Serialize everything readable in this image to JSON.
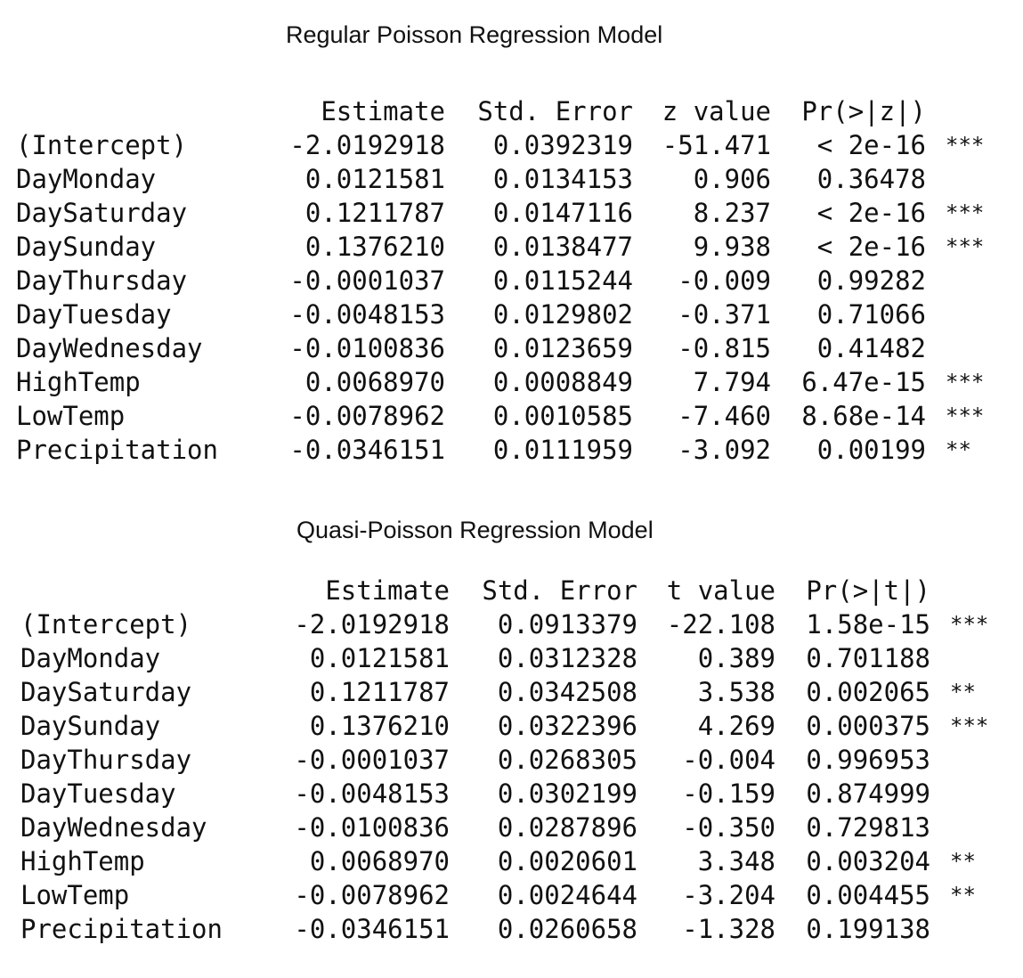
{
  "regular": {
    "title": "Regular Poisson Regression Model",
    "headers": [
      "",
      "Estimate",
      "Std. Error",
      "z value",
      "Pr(>|z|)",
      ""
    ],
    "rows": [
      {
        "term": "(Intercept)",
        "estimate": "-2.0192918",
        "std_error": "0.0392319",
        "stat": "-51.471",
        "p": "< 2e-16",
        "sig": "***"
      },
      {
        "term": "DayMonday",
        "estimate": "0.0121581",
        "std_error": "0.0134153",
        "stat": "0.906",
        "p": "0.36478",
        "sig": ""
      },
      {
        "term": "DaySaturday",
        "estimate": "0.1211787",
        "std_error": "0.0147116",
        "stat": "8.237",
        "p": "< 2e-16",
        "sig": "***"
      },
      {
        "term": "DaySunday",
        "estimate": "0.1376210",
        "std_error": "0.0138477",
        "stat": "9.938",
        "p": "< 2e-16",
        "sig": "***"
      },
      {
        "term": "DayThursday",
        "estimate": "-0.0001037",
        "std_error": "0.0115244",
        "stat": "-0.009",
        "p": "0.99282",
        "sig": ""
      },
      {
        "term": "DayTuesday",
        "estimate": "-0.0048153",
        "std_error": "0.0129802",
        "stat": "-0.371",
        "p": "0.71066",
        "sig": ""
      },
      {
        "term": "DayWednesday",
        "estimate": "-0.0100836",
        "std_error": "0.0123659",
        "stat": "-0.815",
        "p": "0.41482",
        "sig": ""
      },
      {
        "term": "HighTemp",
        "estimate": "0.0068970",
        "std_error": "0.0008849",
        "stat": "7.794",
        "p": "6.47e-15",
        "sig": "***"
      },
      {
        "term": "LowTemp",
        "estimate": "-0.0078962",
        "std_error": "0.0010585",
        "stat": "-7.460",
        "p": "8.68e-14",
        "sig": "***"
      },
      {
        "term": "Precipitation",
        "estimate": "-0.0346151",
        "std_error": "0.0111959",
        "stat": "-3.092",
        "p": "0.00199",
        "sig": "**"
      }
    ]
  },
  "quasi": {
    "title": "Quasi-Poisson Regression Model",
    "headers": [
      "",
      "Estimate",
      "Std. Error",
      "t value",
      "Pr(>|t|)",
      ""
    ],
    "rows": [
      {
        "term": "(Intercept)",
        "estimate": "-2.0192918",
        "std_error": "0.0913379",
        "stat": "-22.108",
        "p": "1.58e-15",
        "sig": "***"
      },
      {
        "term": "DayMonday",
        "estimate": "0.0121581",
        "std_error": "0.0312328",
        "stat": "0.389",
        "p": "0.701188",
        "sig": ""
      },
      {
        "term": "DaySaturday",
        "estimate": "0.1211787",
        "std_error": "0.0342508",
        "stat": "3.538",
        "p": "0.002065",
        "sig": "**"
      },
      {
        "term": "DaySunday",
        "estimate": "0.1376210",
        "std_error": "0.0322396",
        "stat": "4.269",
        "p": "0.000375",
        "sig": "***"
      },
      {
        "term": "DayThursday",
        "estimate": "-0.0001037",
        "std_error": "0.0268305",
        "stat": "-0.004",
        "p": "0.996953",
        "sig": ""
      },
      {
        "term": "DayTuesday",
        "estimate": "-0.0048153",
        "std_error": "0.0302199",
        "stat": "-0.159",
        "p": "0.874999",
        "sig": ""
      },
      {
        "term": "DayWednesday",
        "estimate": "-0.0100836",
        "std_error": "0.0287896",
        "stat": "-0.350",
        "p": "0.729813",
        "sig": ""
      },
      {
        "term": "HighTemp",
        "estimate": "0.0068970",
        "std_error": "0.0020601",
        "stat": "3.348",
        "p": "0.003204",
        "sig": "**"
      },
      {
        "term": "LowTemp",
        "estimate": "-0.0078962",
        "std_error": "0.0024644",
        "stat": "-3.204",
        "p": "0.004455",
        "sig": "**"
      },
      {
        "term": "Precipitation",
        "estimate": "-0.0346151",
        "std_error": "0.0260658",
        "stat": "-1.328",
        "p": "0.199138",
        "sig": ""
      }
    ]
  }
}
